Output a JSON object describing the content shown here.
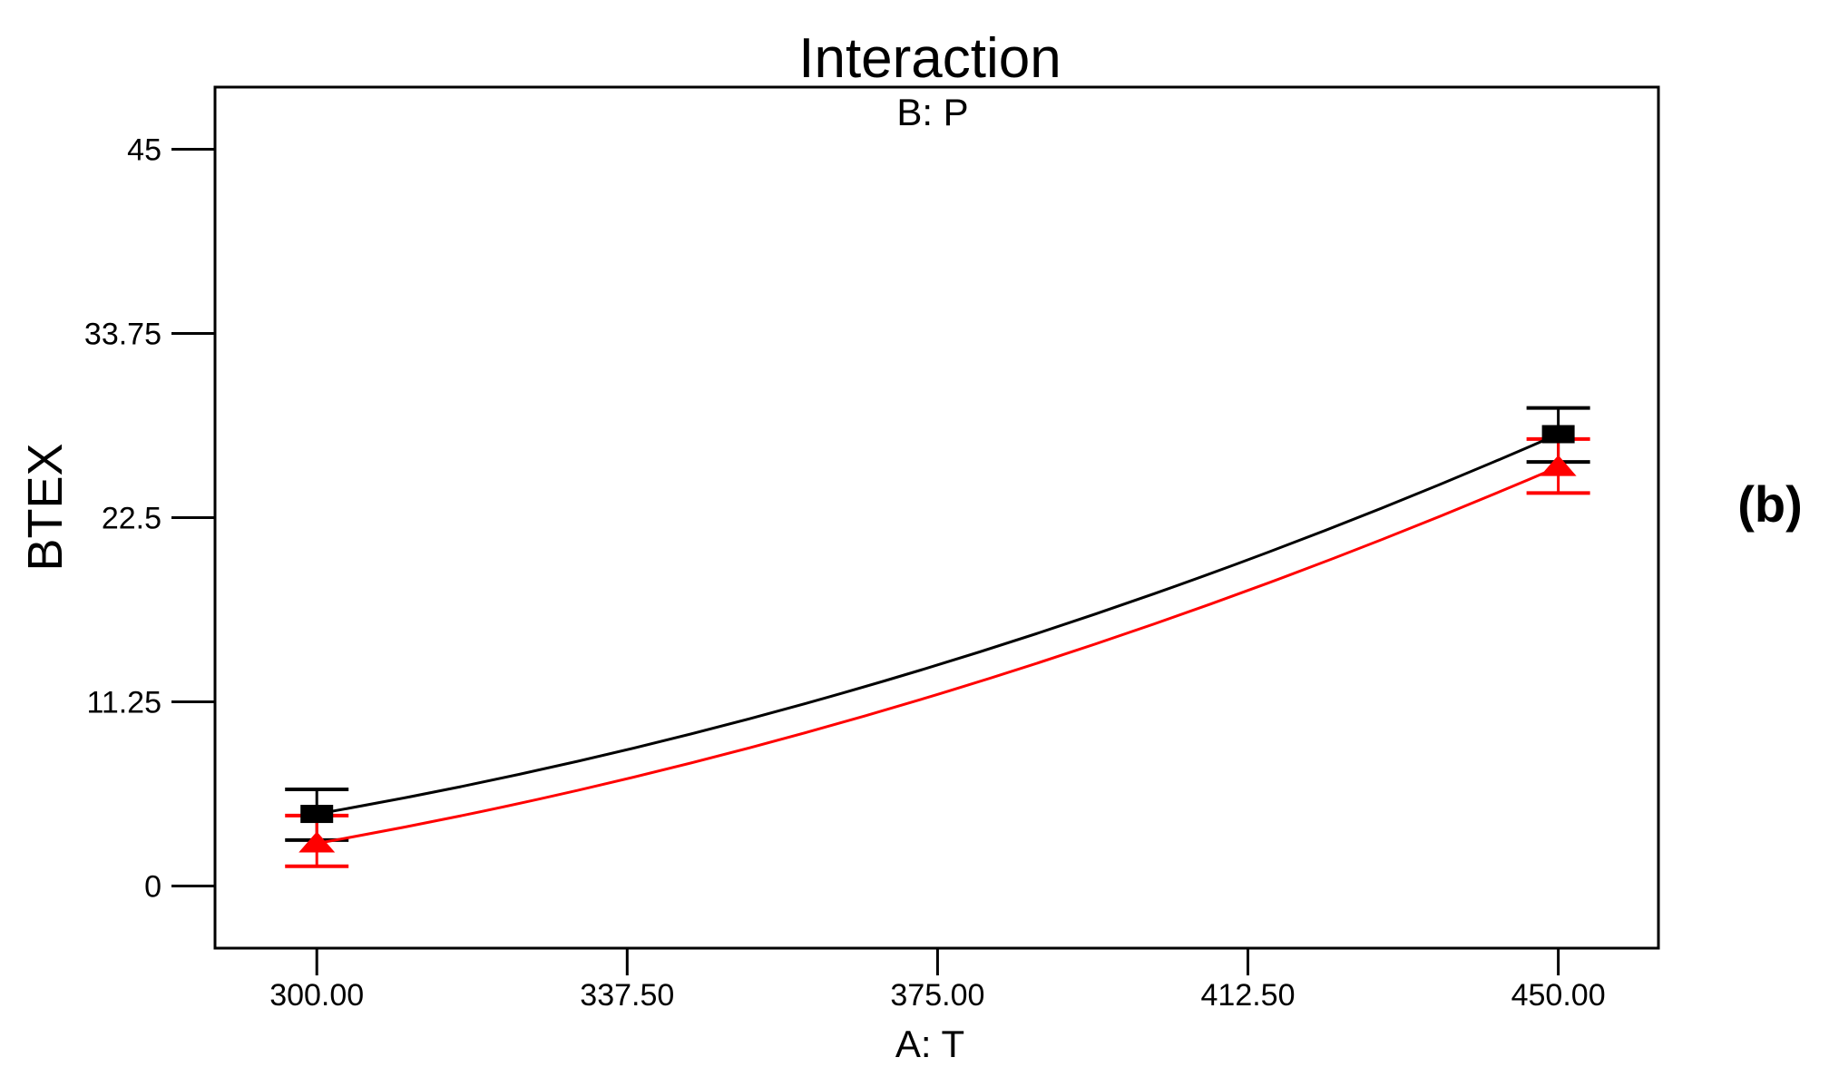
{
  "chart_data": {
    "type": "line",
    "title": "Interaction",
    "subtitle": "B: P",
    "xlabel": "A: T",
    "ylabel": "BTEX",
    "annotation": "(b)",
    "grid": false,
    "legend": "none",
    "xlim": [
      287.7,
      462.1
    ],
    "ylim": [
      -3.8,
      48.8
    ],
    "axis_color": "#000000",
    "x_ticks": [
      {
        "v": 300,
        "label": "300.00"
      },
      {
        "v": 337.5,
        "label": "337.50"
      },
      {
        "v": 375,
        "label": "375.00"
      },
      {
        "v": 412.5,
        "label": "412.50"
      },
      {
        "v": 450,
        "label": "450.00"
      }
    ],
    "y_ticks": [
      {
        "v": 0,
        "label": "0"
      },
      {
        "v": 11.25,
        "label": "11.25"
      },
      {
        "v": 22.5,
        "label": "22.5"
      },
      {
        "v": 33.75,
        "label": "33.75"
      },
      {
        "v": 45,
        "label": "45"
      }
    ],
    "series": [
      {
        "name": "black-square-series",
        "color": "#000000",
        "marker": "square",
        "x": [
          300,
          375,
          450
        ],
        "y": [
          4.4,
          13.5,
          27.6
        ],
        "error_bars": [
          {
            "x": 300,
            "y": 4.4,
            "lo": 2.8,
            "hi": 5.9
          },
          {
            "x": 450,
            "y": 27.6,
            "lo": 25.9,
            "hi": 29.2
          }
        ]
      },
      {
        "name": "red-triangle-series",
        "color": "#FF0000",
        "marker": "triangle-up",
        "x": [
          300,
          375,
          450
        ],
        "y": [
          2.6,
          11.7,
          25.6
        ],
        "error_bars": [
          {
            "x": 300,
            "y": 2.6,
            "lo": 1.2,
            "hi": 4.3
          },
          {
            "x": 450,
            "y": 25.6,
            "lo": 24.0,
            "hi": 27.3
          }
        ]
      }
    ]
  }
}
